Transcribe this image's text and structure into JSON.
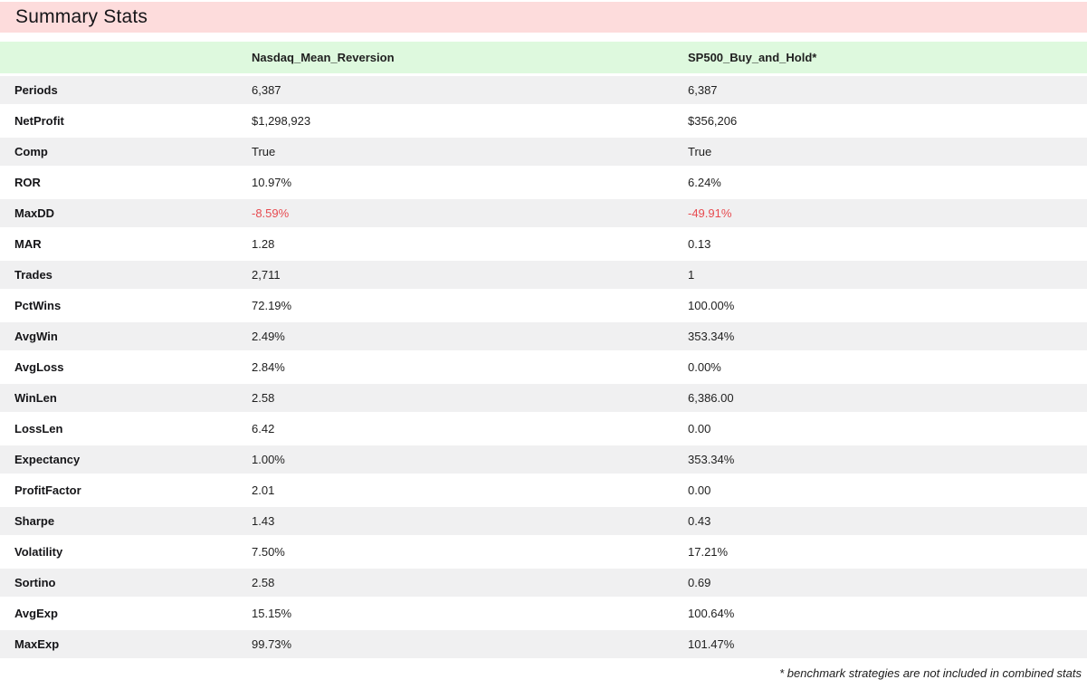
{
  "page": {
    "title": "Summary Stats",
    "footnote": "* benchmark strategies are not included in combined stats"
  },
  "colors": {
    "title_bar_bg": "#fddcdc",
    "header_bg": "#def9de",
    "row_alt_bg": "#f0f0f1",
    "negative_value": "#e74c51"
  },
  "table": {
    "columns": [
      "",
      "Nasdaq_Mean_Reversion",
      "SP500_Buy_and_Hold*"
    ],
    "rows": [
      {
        "label": "Periods",
        "values": [
          "6,387",
          "6,387"
        ]
      },
      {
        "label": "NetProfit",
        "values": [
          "$1,298,923",
          "$356,206"
        ]
      },
      {
        "label": "Comp",
        "values": [
          "True",
          "True"
        ]
      },
      {
        "label": "ROR",
        "values": [
          "10.97%",
          "6.24%"
        ]
      },
      {
        "label": "MaxDD",
        "values": [
          "-8.59%",
          "-49.91%"
        ],
        "negative": true
      },
      {
        "label": "MAR",
        "values": [
          "1.28",
          "0.13"
        ]
      },
      {
        "label": "Trades",
        "values": [
          "2,711",
          "1"
        ]
      },
      {
        "label": "PctWins",
        "values": [
          "72.19%",
          "100.00%"
        ]
      },
      {
        "label": "AvgWin",
        "values": [
          "2.49%",
          "353.34%"
        ]
      },
      {
        "label": "AvgLoss",
        "values": [
          "2.84%",
          "0.00%"
        ]
      },
      {
        "label": "WinLen",
        "values": [
          "2.58",
          "6,386.00"
        ]
      },
      {
        "label": "LossLen",
        "values": [
          "6.42",
          "0.00"
        ]
      },
      {
        "label": "Expectancy",
        "values": [
          "1.00%",
          "353.34%"
        ]
      },
      {
        "label": "ProfitFactor",
        "values": [
          "2.01",
          "0.00"
        ]
      },
      {
        "label": "Sharpe",
        "values": [
          "1.43",
          "0.43"
        ]
      },
      {
        "label": "Volatility",
        "values": [
          "7.50%",
          "17.21%"
        ]
      },
      {
        "label": "Sortino",
        "values": [
          "2.58",
          "0.69"
        ]
      },
      {
        "label": "AvgExp",
        "values": [
          "15.15%",
          "100.64%"
        ]
      },
      {
        "label": "MaxExp",
        "values": [
          "99.73%",
          "101.47%"
        ]
      }
    ]
  }
}
